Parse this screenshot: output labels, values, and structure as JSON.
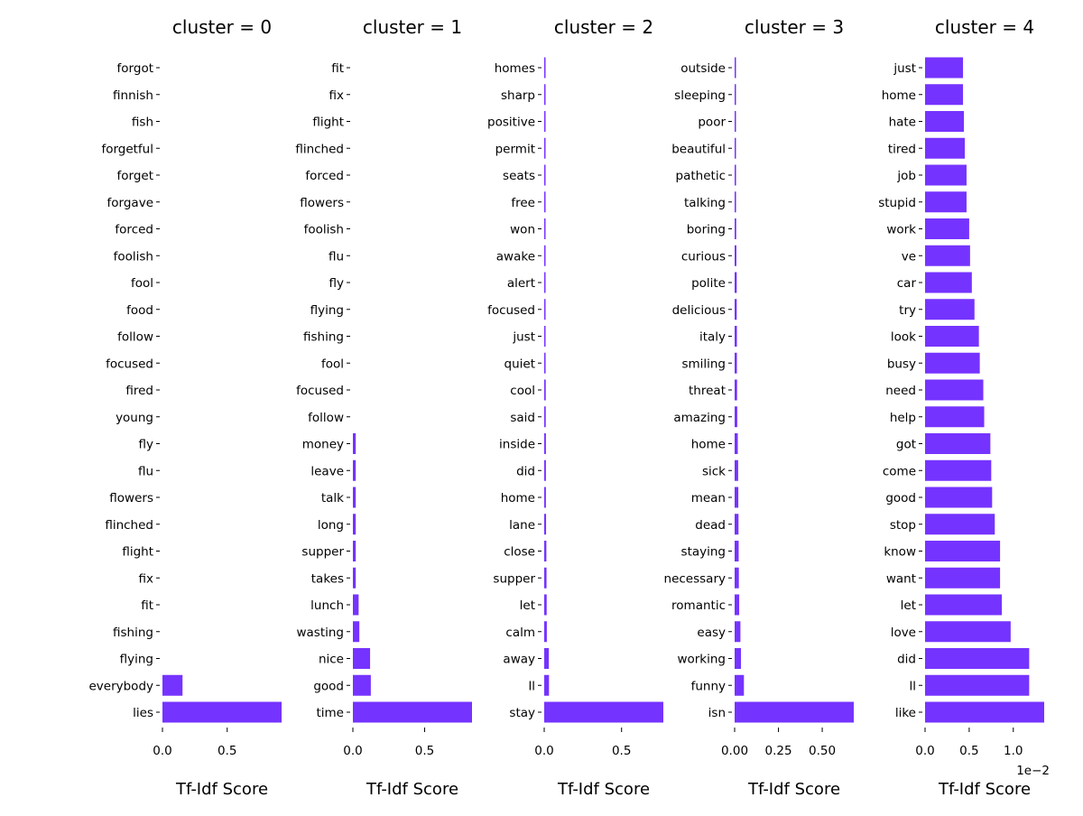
{
  "chart_data": [
    {
      "type": "bar",
      "orientation": "horizontal",
      "title": "cluster = 0",
      "xlabel": "Tf-Idf Score",
      "color": "#7533ff",
      "xlim": [
        0,
        0.92
      ],
      "xticks": [
        0.0,
        0.5
      ],
      "xtick_labels": [
        "0.0",
        "0.5"
      ],
      "categories": [
        "forgot",
        "finnish",
        "fish",
        "forgetful",
        "forget",
        "forgave",
        "forced",
        "foolish",
        "fool",
        "food",
        "follow",
        "focused",
        "fired",
        "young",
        "fly",
        "flu",
        "flowers",
        "flinched",
        "flight",
        "fix",
        "fit",
        "fishing",
        "flying",
        "everybody",
        "lies"
      ],
      "values": [
        0,
        0,
        0,
        0,
        0,
        0,
        0,
        0,
        0,
        0,
        0,
        0,
        0,
        0,
        0,
        0,
        0,
        0,
        0,
        0,
        0,
        0,
        0,
        0.155,
        0.92
      ]
    },
    {
      "type": "bar",
      "orientation": "horizontal",
      "title": "cluster = 1",
      "xlabel": "Tf-Idf Score",
      "color": "#7533ff",
      "xlim": [
        0,
        0.83
      ],
      "xticks": [
        0.0,
        0.5
      ],
      "xtick_labels": [
        "0.0",
        "0.5"
      ],
      "categories": [
        "fit",
        "fix",
        "flight",
        "flinched",
        "forced",
        "flowers",
        "foolish",
        "flu",
        "fly",
        "flying",
        "fishing",
        "fool",
        "focused",
        "follow",
        "money",
        "leave",
        "talk",
        "long",
        "supper",
        "takes",
        "lunch",
        "wasting",
        "nice",
        "good",
        "time"
      ],
      "values": [
        0,
        0,
        0,
        0,
        0,
        0,
        0,
        0,
        0,
        0,
        0,
        0,
        0,
        0,
        0.02,
        0.02,
        0.02,
        0.02,
        0.02,
        0.02,
        0.04,
        0.045,
        0.12,
        0.125,
        0.83
      ]
    },
    {
      "type": "bar",
      "orientation": "horizontal",
      "title": "cluster = 2",
      "xlabel": "Tf-Idf Score",
      "color": "#7533ff",
      "xlim": [
        0,
        0.77
      ],
      "xticks": [
        0.0,
        0.5
      ],
      "xtick_labels": [
        "0.0",
        "0.5"
      ],
      "categories": [
        "homes",
        "sharp",
        "positive",
        "permit",
        "seats",
        "free",
        "won",
        "awake",
        "alert",
        "focused",
        "just",
        "quiet",
        "cool",
        "said",
        "inside",
        "did",
        "home",
        "lane",
        "close",
        "supper",
        "let",
        "calm",
        "away",
        "ll",
        "stay"
      ],
      "values": [
        0.005,
        0.005,
        0.005,
        0.005,
        0.005,
        0.005,
        0.005,
        0.005,
        0.006,
        0.006,
        0.007,
        0.009,
        0.01,
        0.01,
        0.011,
        0.011,
        0.011,
        0.012,
        0.014,
        0.015,
        0.016,
        0.017,
        0.03,
        0.031,
        0.77
      ]
    },
    {
      "type": "bar",
      "orientation": "horizontal",
      "title": "cluster = 3",
      "xlabel": "Tf-Idf Score",
      "color": "#7533ff",
      "xlim": [
        0,
        0.68
      ],
      "xticks": [
        0.0,
        0.25,
        0.5
      ],
      "xtick_labels": [
        "0.00",
        "0.25",
        "0.50"
      ],
      "categories": [
        "outside",
        "sleeping",
        "poor",
        "beautiful",
        "pathetic",
        "talking",
        "boring",
        "curious",
        "polite",
        "delicious",
        "italy",
        "smiling",
        "threat",
        "amazing",
        "home",
        "sick",
        "mean",
        "dead",
        "staying",
        "necessary",
        "romantic",
        "easy",
        "working",
        "funny",
        "isn"
      ],
      "values": [
        0.006,
        0.007,
        0.007,
        0.007,
        0.008,
        0.008,
        0.009,
        0.01,
        0.012,
        0.012,
        0.013,
        0.013,
        0.014,
        0.015,
        0.018,
        0.02,
        0.021,
        0.022,
        0.023,
        0.024,
        0.026,
        0.033,
        0.036,
        0.053,
        0.68
      ]
    },
    {
      "type": "bar",
      "orientation": "horizontal",
      "title": "cluster = 4",
      "xlabel": "Tf-Idf Score",
      "color": "#7533ff",
      "xlim": [
        0,
        0.0135
      ],
      "xticks": [
        0.0,
        0.005,
        0.01
      ],
      "xtick_labels": [
        "0.0",
        "0.5",
        "1.0"
      ],
      "offset_label": "1e−2",
      "categories": [
        "just",
        "home",
        "hate",
        "tired",
        "job",
        "stupid",
        "work",
        "ve",
        "car",
        "try",
        "look",
        "busy",
        "need",
        "help",
        "got",
        "come",
        "good",
        "stop",
        "know",
        "want",
        "let",
        "love",
        "did",
        "ll",
        "like"
      ],
      "values": [
        0.0043,
        0.0043,
        0.0044,
        0.0045,
        0.0047,
        0.0047,
        0.005,
        0.0051,
        0.0053,
        0.0056,
        0.0061,
        0.0062,
        0.0066,
        0.0067,
        0.0074,
        0.0075,
        0.0076,
        0.0079,
        0.0085,
        0.0085,
        0.0087,
        0.0097,
        0.0118,
        0.0118,
        0.0135
      ]
    }
  ]
}
